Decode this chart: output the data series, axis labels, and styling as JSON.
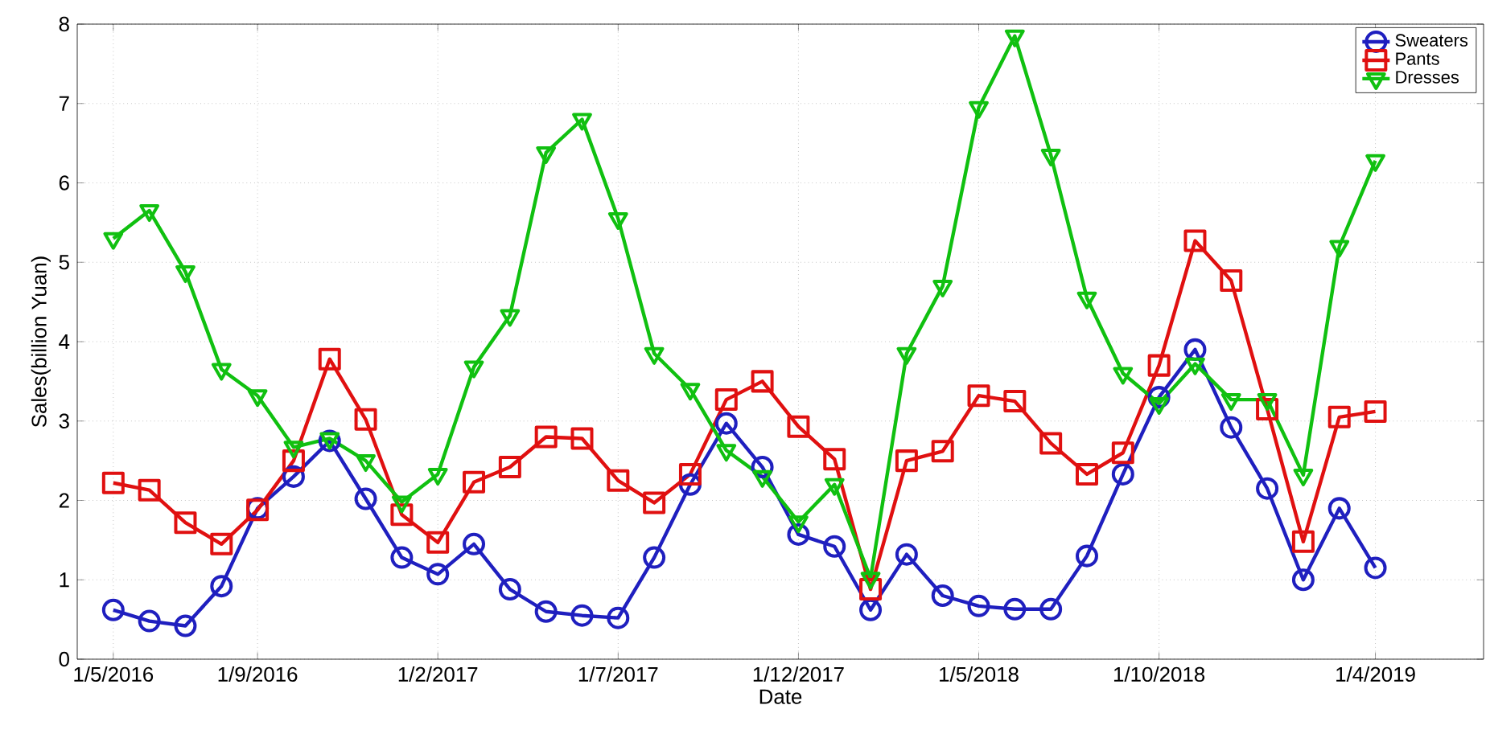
{
  "chart_data": {
    "type": "line",
    "xlabel": "Date",
    "ylabel": "Sales(billion Yuan)",
    "x": [
      "2016-05",
      "2016-06",
      "2016-07",
      "2016-08",
      "2016-09",
      "2016-10",
      "2016-11",
      "2016-12",
      "2017-01",
      "2017-02",
      "2017-03",
      "2017-04",
      "2017-05",
      "2017-06",
      "2017-07",
      "2017-08",
      "2017-09",
      "2017-10",
      "2017-11",
      "2017-12",
      "2018-01",
      "2018-02",
      "2018-03",
      "2018-04",
      "2018-05",
      "2018-06",
      "2018-07",
      "2018-08",
      "2018-09",
      "2018-10",
      "2018-11",
      "2018-12",
      "2019-01",
      "2019-02",
      "2019-03",
      "2019-04"
    ],
    "series": [
      {
        "name": "Sweaters",
        "color": "#1f1fbf",
        "marker": "circle",
        "values": [
          0.62,
          0.48,
          0.42,
          0.92,
          1.9,
          2.3,
          2.75,
          2.02,
          1.28,
          1.07,
          1.45,
          0.88,
          0.6,
          0.55,
          0.52,
          1.28,
          2.2,
          2.97,
          2.42,
          1.57,
          1.42,
          0.62,
          1.32,
          0.8,
          0.67,
          0.63,
          0.63,
          1.3,
          2.33,
          3.3,
          3.9,
          2.92,
          2.15,
          1.0,
          1.9,
          1.15
        ]
      },
      {
        "name": "Pants",
        "color": "#e01010",
        "marker": "square",
        "values": [
          2.22,
          2.13,
          1.72,
          1.45,
          1.88,
          2.5,
          3.78,
          3.02,
          1.82,
          1.47,
          2.23,
          2.42,
          2.8,
          2.78,
          2.25,
          1.97,
          2.33,
          3.27,
          3.5,
          2.93,
          2.52,
          0.88,
          2.5,
          2.62,
          3.32,
          3.25,
          2.72,
          2.33,
          2.6,
          3.7,
          5.27,
          4.77,
          3.15,
          1.48,
          3.05,
          3.12
        ]
      },
      {
        "name": "Dresses",
        "color": "#10c010",
        "marker": "triangle",
        "values": [
          5.3,
          5.65,
          4.88,
          3.65,
          3.32,
          2.67,
          2.78,
          2.5,
          1.98,
          2.33,
          3.68,
          4.33,
          6.38,
          6.8,
          5.55,
          3.85,
          3.4,
          2.63,
          2.3,
          1.73,
          2.2,
          1.02,
          3.85,
          4.7,
          6.95,
          7.85,
          6.35,
          4.55,
          3.6,
          3.22,
          3.72,
          3.27,
          3.27,
          2.32,
          5.2,
          6.28
        ]
      }
    ],
    "xlim": [
      "2016-04",
      "2019-07"
    ],
    "xticks": [
      {
        "value": "2016-05",
        "label": "1/5/2016"
      },
      {
        "value": "2016-09",
        "label": "1/9/2016"
      },
      {
        "value": "2017-02",
        "label": "1/2/2017"
      },
      {
        "value": "2017-07",
        "label": "1/7/2017"
      },
      {
        "value": "2017-12",
        "label": "1/12/2017"
      },
      {
        "value": "2018-05",
        "label": "1/5/2018"
      },
      {
        "value": "2018-10",
        "label": "1/10/2018"
      },
      {
        "value": "2019-04",
        "label": "1/4/2019"
      }
    ],
    "ylim": [
      0,
      8
    ],
    "yticks": [
      0,
      1,
      2,
      3,
      4,
      5,
      6,
      7,
      8
    ],
    "grid": true,
    "legend": "top right",
    "line_style": "solid"
  }
}
